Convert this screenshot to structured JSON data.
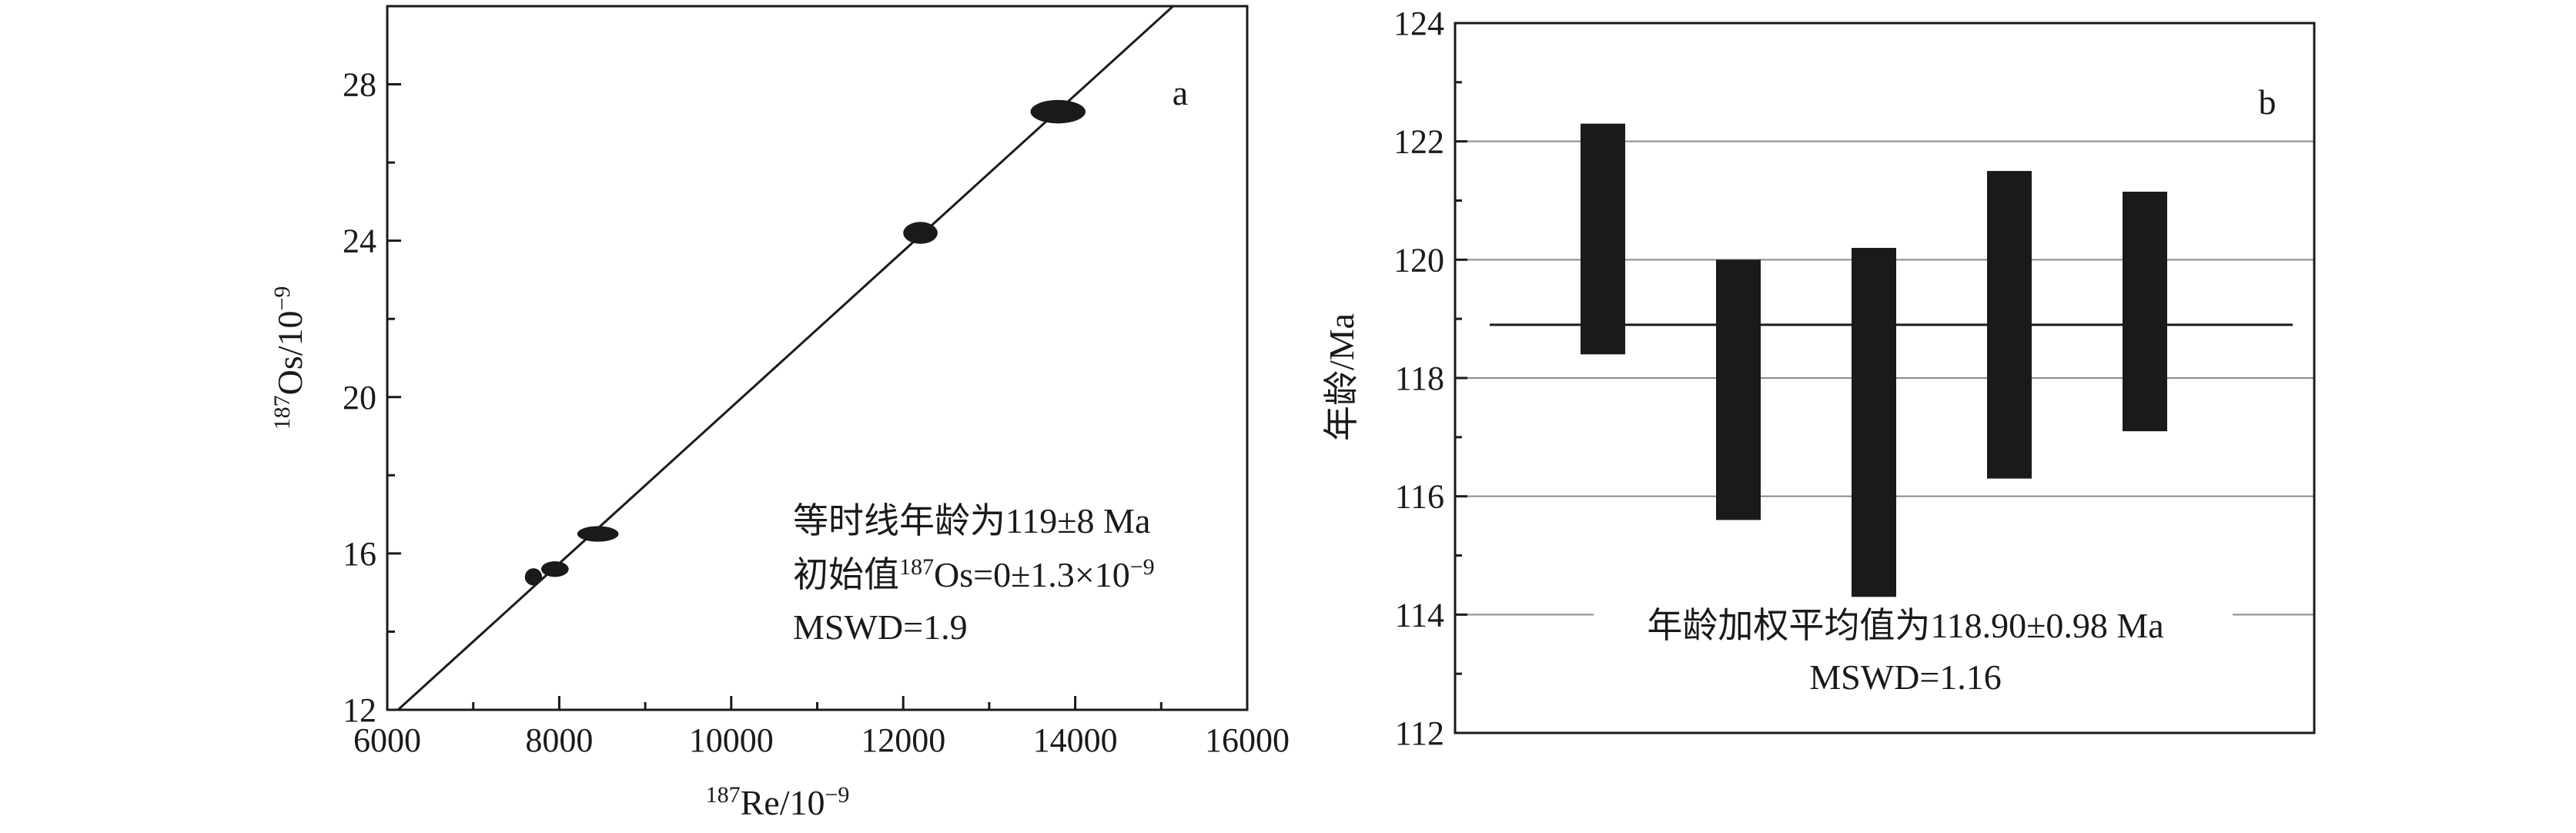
{
  "chart_data": [
    {
      "type": "scatter",
      "panel_label": "a",
      "xlabel": {
        "sup": "187",
        "text": "Re/10",
        "exp": "−9"
      },
      "ylabel": {
        "sup": "187",
        "text": "Os/10",
        "exp": "−9"
      },
      "xlim": [
        6000,
        16000
      ],
      "ylim": [
        12,
        30
      ],
      "xticks": [
        6000,
        8000,
        10000,
        12000,
        14000,
        16000
      ],
      "yticks": [
        12,
        16,
        20,
        24,
        28
      ],
      "points": [
        {
          "x": 7700,
          "y": 15.4,
          "sx": 100,
          "sy": 0.22
        },
        {
          "x": 7950,
          "y": 15.6,
          "sx": 160,
          "sy": 0.2
        },
        {
          "x": 8450,
          "y": 16.5,
          "sx": 240,
          "sy": 0.2
        },
        {
          "x": 12200,
          "y": 24.2,
          "sx": 200,
          "sy": 0.28
        },
        {
          "x": 13800,
          "y": 27.3,
          "sx": 320,
          "sy": 0.3
        }
      ],
      "fit_line": {
        "x": [
          6000,
          16000
        ],
        "y": [
          11.75,
          31.72
        ]
      },
      "annotations": [
        "等时线年龄为119±8 Ma",
        "初始值",
        "Os=0±1.3×10",
        "MSWD=1.9"
      ],
      "annotation_sup": [
        "187",
        "−9"
      ]
    },
    {
      "type": "bar",
      "panel_label": "b",
      "ylabel": "年龄/Ma",
      "ylim": [
        112,
        124
      ],
      "yticks": [
        112,
        114,
        116,
        118,
        120,
        122,
        124
      ],
      "grid": true,
      "bars": [
        {
          "low": 118.4,
          "high": 122.3
        },
        {
          "low": 115.6,
          "high": 120.0
        },
        {
          "low": 114.3,
          "high": 120.2
        },
        {
          "low": 116.3,
          "high": 121.5
        },
        {
          "low": 117.1,
          "high": 121.15
        }
      ],
      "mean_line": 118.9,
      "annotations": [
        "年龄加权平均值为118.90±0.98 Ma",
        "MSWD=1.16"
      ]
    }
  ]
}
